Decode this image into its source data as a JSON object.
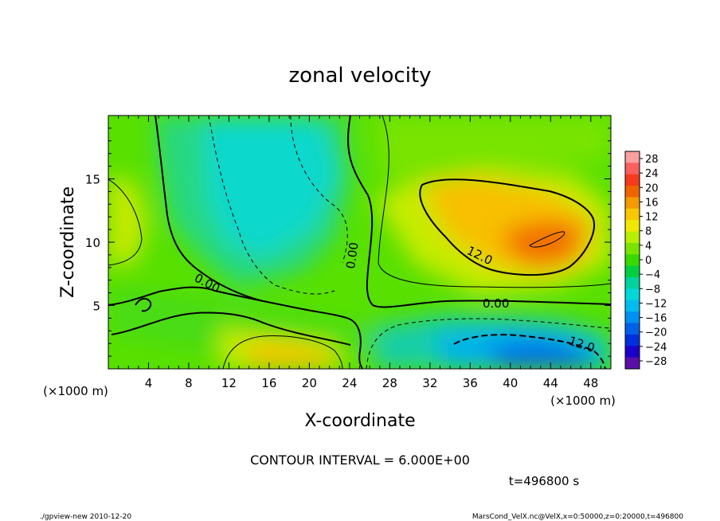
{
  "chart_data": {
    "type": "heatmap",
    "title": "zonal velocity",
    "xlabel": "X-coordinate",
    "ylabel": "Z-coordinate",
    "x_unit_label": "(×1000 m)",
    "y_unit_label": "(×1000 m)",
    "x_ticks": [
      "4",
      "8",
      "12",
      "16",
      "20",
      "24",
      "28",
      "32",
      "36",
      "40",
      "44",
      "48"
    ],
    "y_ticks": [
      "5",
      "10",
      "15"
    ],
    "xlim": [
      0,
      50
    ],
    "ylim": [
      0,
      20
    ],
    "colorbar": {
      "labels": [
        "28",
        "24",
        "20",
        "16",
        "12",
        "8",
        "4",
        "0",
        "−4",
        "−8",
        "−12",
        "−16",
        "−20",
        "−24",
        "−28"
      ],
      "colors": [
        "#fba0a0",
        "#f86060",
        "#f43c1c",
        "#f06400",
        "#f59a00",
        "#f8c800",
        "#f0e800",
        "#b8ee00",
        "#78e400",
        "#38d800",
        "#00d040",
        "#00d2a0",
        "#00d8d8",
        "#00bcee",
        "#0090f0",
        "#0060e8",
        "#0030dc",
        "#1a00c8",
        "#5a10a8"
      ]
    },
    "contour_labels": [
      "0.00",
      "0.00",
      "0.00",
      "12.0",
      "12.0"
    ],
    "features": [
      {
        "x": 42,
        "z": 11,
        "value": 18
      },
      {
        "x": 37,
        "z": 12.5,
        "value": 14
      },
      {
        "x": 42,
        "z": 1.5,
        "value": -16
      },
      {
        "x": 18,
        "z": 1.2,
        "value": 12
      },
      {
        "x": 15,
        "z": 14,
        "value": -7
      },
      {
        "x": 19,
        "z": 11,
        "value": -8
      },
      {
        "x": 0.5,
        "z": 12,
        "value": 9
      },
      {
        "x": 30,
        "z": 15,
        "value": 3
      }
    ],
    "annotation": "CONTOUR INTERVAL = 6.000E+00",
    "time_label": "t=496800 s",
    "grid": false
  },
  "footer": {
    "left": "./gpview-new   2010-12-20",
    "right": "MarsCond_VelX.nc@VelX,x=0:50000,z=0:20000,t=496800"
  }
}
